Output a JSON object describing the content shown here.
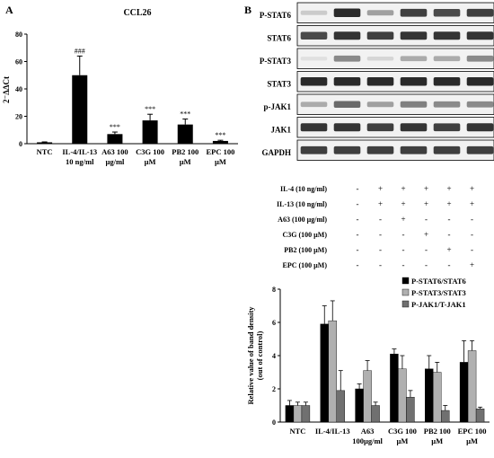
{
  "panel_a_label": "A",
  "panel_b_label": "B",
  "chart_data": [
    {
      "type": "bar",
      "title": "CCL26",
      "ylabel": "2⁻ΔΔCt",
      "ylim": [
        0,
        80
      ],
      "yticks": [
        0,
        20,
        40,
        60,
        80
      ],
      "categories": [
        "NTC",
        "IL-4/IL-13 10 ng/ml",
        "A63 100 µg/ml",
        "C3G 100 µM",
        "PB2 100 µM",
        "EPC 100 µM"
      ],
      "category_lines": [
        [
          "NTC"
        ],
        [
          "IL-4/IL-13",
          "10 ng/ml"
        ],
        [
          "A63 100",
          "µg/ml"
        ],
        [
          "C3G 100",
          "µM"
        ],
        [
          "PB2 100",
          "µM"
        ],
        [
          "EPC 100",
          "µM"
        ]
      ],
      "values": [
        1,
        50,
        7,
        17,
        14,
        2
      ],
      "errors": [
        0.3,
        14,
        1.5,
        4.5,
        4,
        0.5
      ],
      "annotations": [
        "",
        "###",
        "***",
        "***",
        "***",
        "***"
      ],
      "color": "#000000"
    },
    {
      "type": "bar",
      "ylabel_lines": [
        "Relative value of band density",
        "(out of control)"
      ],
      "ylim": [
        0,
        8
      ],
      "yticks": [
        0,
        2,
        4,
        6,
        8
      ],
      "categories": [
        "NTC",
        "IL-4/IL-13",
        "A63 100µg/ml",
        "C3G 100 µM",
        "PB2 100 µM",
        "EPC 100 µM"
      ],
      "category_lines": [
        [
          "NTC"
        ],
        [
          "IL-4/IL-13"
        ],
        [
          "A63",
          "100µg/ml"
        ],
        [
          "C3G 100",
          "µM"
        ],
        [
          "PB2  100",
          "µM"
        ],
        [
          "EPC  100",
          "µM"
        ]
      ],
      "series": [
        {
          "name": "P-STAT6/STAT6",
          "color": "#000000",
          "values": [
            1.0,
            5.9,
            2.0,
            4.1,
            3.2,
            3.6
          ],
          "errors": [
            0.3,
            1.1,
            0.3,
            0.3,
            0.8,
            1.3
          ]
        },
        {
          "name": "P-STAT3/STAT3",
          "color": "#b0b0b0",
          "values": [
            1.0,
            6.1,
            3.1,
            3.2,
            3.0,
            4.3
          ],
          "errors": [
            0.2,
            1.2,
            0.6,
            0.8,
            0.6,
            0.6
          ]
        },
        {
          "name": "P-JAK1/T-JAK1",
          "color": "#707070",
          "values": [
            1.0,
            1.9,
            1.0,
            1.5,
            0.7,
            0.8
          ],
          "errors": [
            0.2,
            1.2,
            0.2,
            0.4,
            0.3,
            0.1
          ]
        }
      ],
      "legend_position": "top-right"
    }
  ],
  "blot": {
    "bands": [
      {
        "label": "P-STAT6",
        "intensities": [
          0.15,
          0.9,
          0.35,
          0.8,
          0.75,
          0.8
        ]
      },
      {
        "label": "STAT6",
        "intensities": [
          0.75,
          0.85,
          0.8,
          0.85,
          0.85,
          0.85
        ]
      },
      {
        "label": "P-STAT3",
        "intensities": [
          0.05,
          0.45,
          0.1,
          0.3,
          0.3,
          0.45
        ]
      },
      {
        "label": "STAT3",
        "intensities": [
          0.9,
          0.9,
          0.9,
          0.9,
          0.9,
          0.9
        ]
      },
      {
        "label": "p-JAK1",
        "intensities": [
          0.3,
          0.6,
          0.35,
          0.5,
          0.45,
          0.45
        ]
      },
      {
        "label": "JAK1",
        "intensities": [
          0.85,
          0.85,
          0.8,
          0.85,
          0.8,
          0.85
        ]
      },
      {
        "label": "GAPDH",
        "intensities": [
          0.8,
          0.8,
          0.8,
          0.8,
          0.8,
          0.8
        ]
      }
    ]
  },
  "treatment_table": {
    "rows": [
      {
        "label": "IL-4 (10 ng/ml)",
        "signs": [
          "-",
          "+",
          "+",
          "+",
          "+",
          "+"
        ]
      },
      {
        "label": "IL-13 (10 ng/ml)",
        "signs": [
          "-",
          "+",
          "+",
          "+",
          "+",
          "+"
        ]
      },
      {
        "label": "A63 (100 µg/ml)",
        "signs": [
          "-",
          "-",
          "+",
          "-",
          "-",
          "-"
        ]
      },
      {
        "label": "C3G (100 µM)",
        "signs": [
          "-",
          "-",
          "-",
          "+",
          "-",
          "-"
        ]
      },
      {
        "label": "PB2 (100 µM)",
        "signs": [
          "-",
          "-",
          "-",
          "-",
          "+",
          "-"
        ]
      },
      {
        "label": "EPC (100 µM)",
        "signs": [
          "-",
          "-",
          "-",
          "-",
          "-",
          "+"
        ]
      }
    ]
  }
}
